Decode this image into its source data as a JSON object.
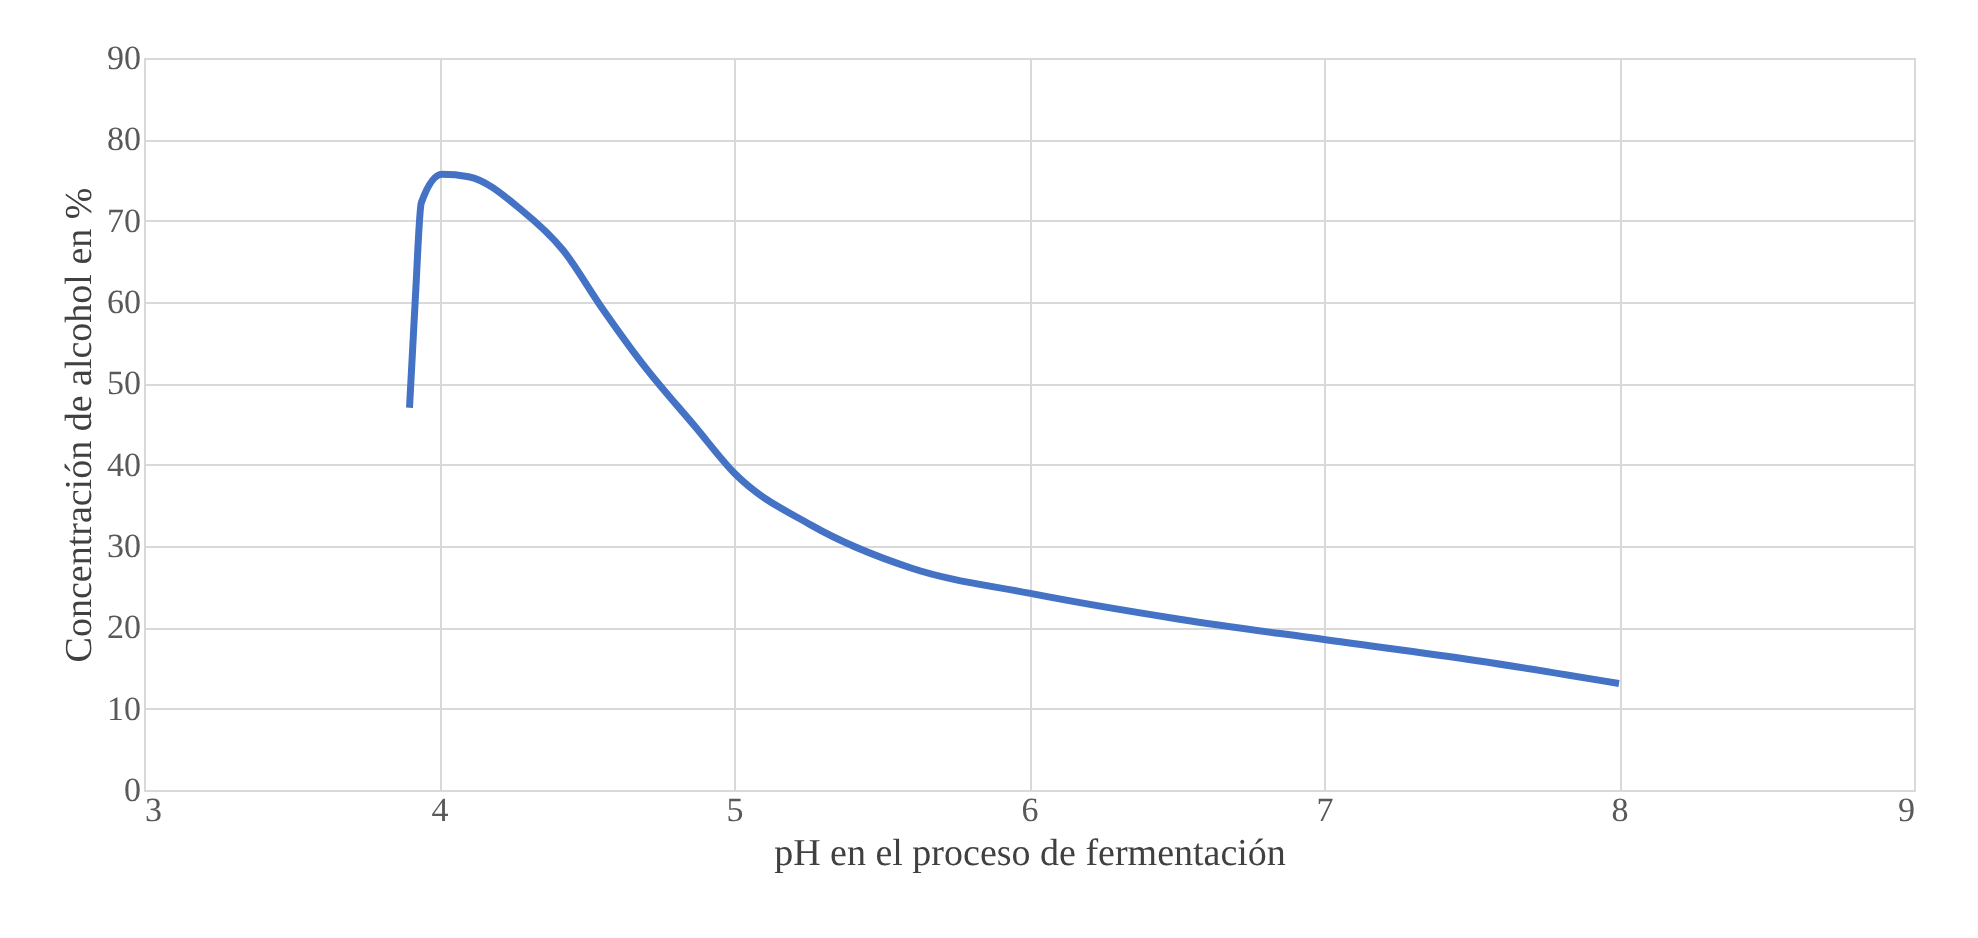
{
  "chart_data": {
    "type": "line",
    "xlabel": "pH en el proceso de fermentación",
    "ylabel": "Concentración de alcohol en %",
    "x": [
      3.9,
      3.92,
      3.94,
      4.01,
      4.1,
      4.28,
      4.42,
      4.55,
      4.69,
      4.87,
      5.0,
      5.26,
      5.6,
      6.0,
      6.51,
      7.0,
      7.52,
      8.0
    ],
    "series": [
      {
        "color": "#4472c4",
        "values": [
          47,
          60.6,
          72.2,
          75.7,
          75.4,
          71.3,
          66.4,
          59.4,
          52.4,
          44.6,
          39,
          32.6,
          27.3,
          24.2,
          21,
          18.5,
          15.9,
          13.1
        ]
      }
    ],
    "xlim": [
      3,
      9
    ],
    "xticks": [
      3,
      4,
      5,
      6,
      7,
      8,
      9
    ],
    "ylim": [
      0,
      90
    ],
    "yticks": [
      0,
      10,
      20,
      30,
      40,
      50,
      60,
      70,
      80,
      90
    ],
    "grid": true,
    "marker": "none",
    "line_style": "solid"
  }
}
